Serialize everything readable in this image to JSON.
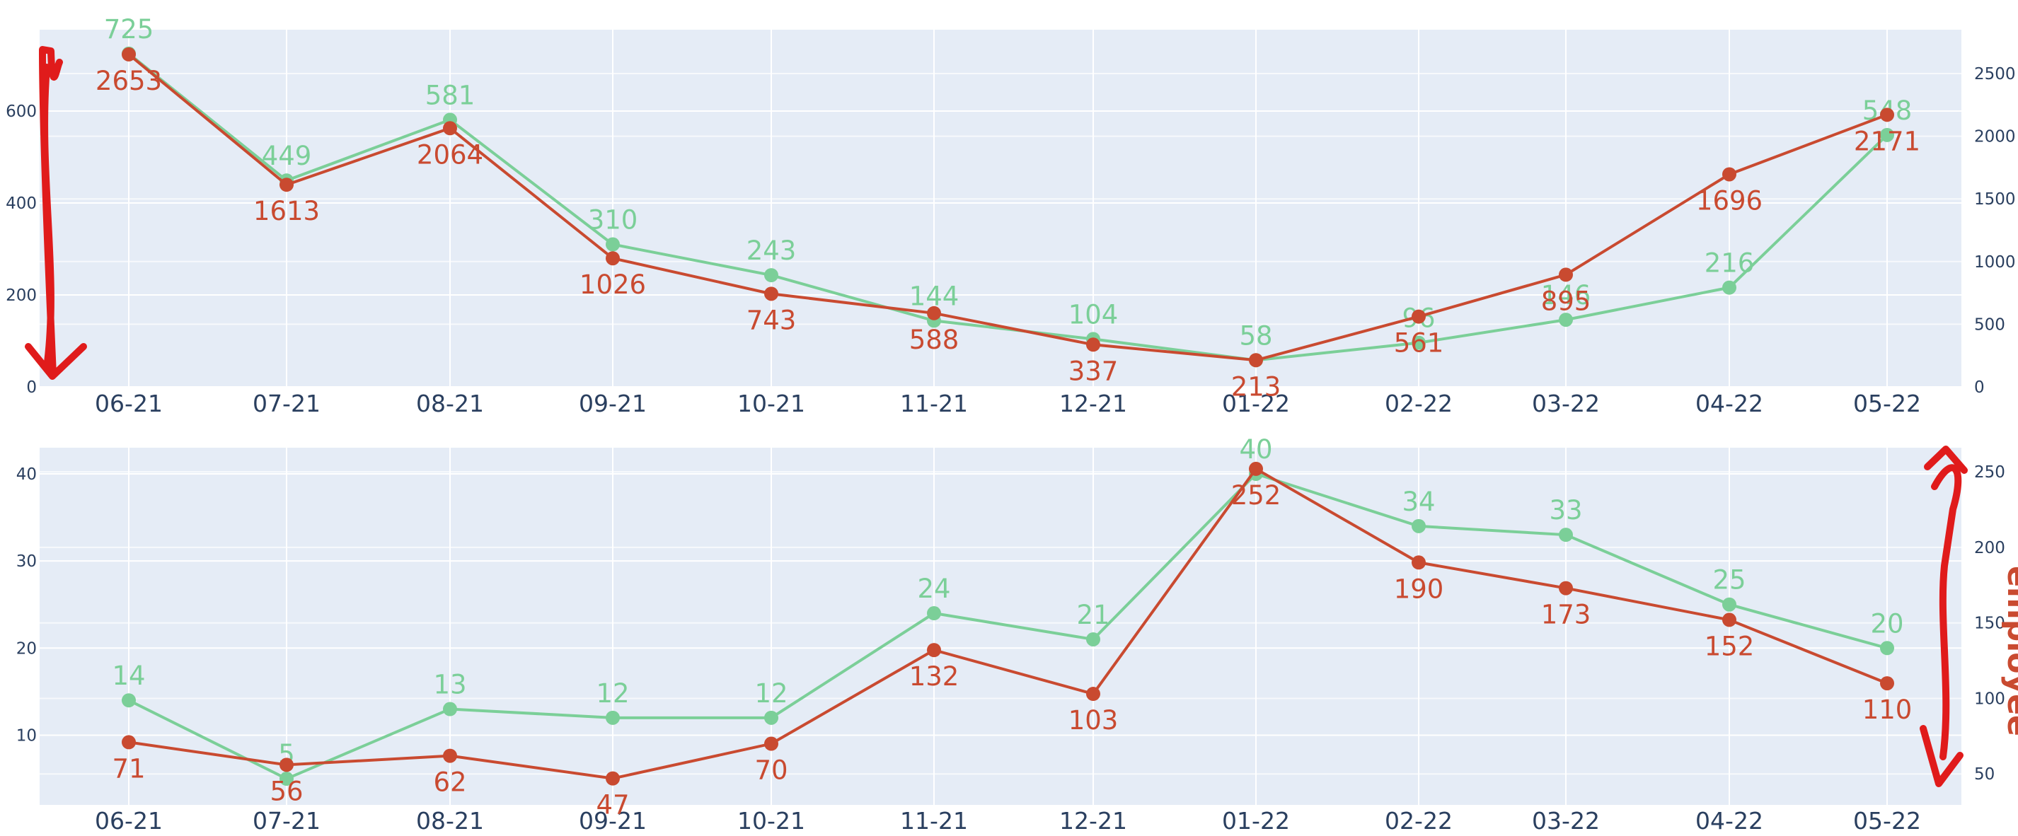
{
  "chart_data": [
    {
      "type": "line",
      "categories": [
        "06-21",
        "07-21",
        "08-21",
        "09-21",
        "10-21",
        "11-21",
        "12-21",
        "01-22",
        "02-22",
        "03-22",
        "04-22",
        "05-22"
      ],
      "y_left_ticks": [
        0,
        200,
        400,
        600
      ],
      "y_right_ticks": [
        0,
        500,
        1000,
        1500,
        2000,
        2500
      ],
      "ylim_left": [
        0,
        777
      ],
      "ylim_right": [
        0,
        2850
      ],
      "grid": true,
      "series": [
        {
          "axis": "left",
          "color": "#7bcf98",
          "values": [
            725,
            449,
            581,
            310,
            243,
            144,
            104,
            58,
            96,
            146,
            216,
            548
          ],
          "labels": [
            "725",
            "449",
            "581",
            "310",
            "243",
            "144",
            "104",
            "58",
            "96",
            "146",
            "216",
            "548"
          ]
        },
        {
          "axis": "right",
          "color": "#c94a30",
          "values": [
            2653,
            1613,
            2064,
            1026,
            743,
            588,
            337,
            213,
            561,
            895,
            1696,
            2171
          ],
          "labels": [
            "2653",
            "1613",
            "2064",
            "1026",
            "743",
            "588",
            "337",
            "213",
            "561",
            "895",
            "1696",
            "2171"
          ]
        }
      ]
    },
    {
      "type": "line",
      "categories": [
        "06-21",
        "07-21",
        "08-21",
        "09-21",
        "10-21",
        "11-21",
        "12-21",
        "01-22",
        "02-22",
        "03-22",
        "04-22",
        "05-22"
      ],
      "y_left_ticks": [
        10,
        20,
        30,
        40
      ],
      "y_right_ticks": [
        50,
        100,
        150,
        200,
        250
      ],
      "ylim_left": [
        2,
        43
      ],
      "ylim_right": [
        29.5,
        266
      ],
      "grid": true,
      "y_right_title": "employee",
      "series": [
        {
          "axis": "left",
          "color": "#7bcf98",
          "values": [
            14,
            5,
            13,
            12,
            12,
            24,
            21,
            40,
            34,
            33,
            25,
            20
          ],
          "labels": [
            "14",
            "5",
            "13",
            "12",
            "12",
            "24",
            "21",
            "40",
            "34",
            "33",
            "25",
            "20"
          ]
        },
        {
          "axis": "right",
          "color": "#c94a30",
          "values": [
            71,
            56,
            62,
            47,
            70,
            132,
            103,
            252,
            190,
            173,
            152,
            110
          ],
          "labels": [
            "71",
            "56",
            "62",
            "47",
            "70",
            "132",
            "103",
            "252",
            "190",
            "173",
            "152",
            "110"
          ]
        }
      ]
    }
  ]
}
